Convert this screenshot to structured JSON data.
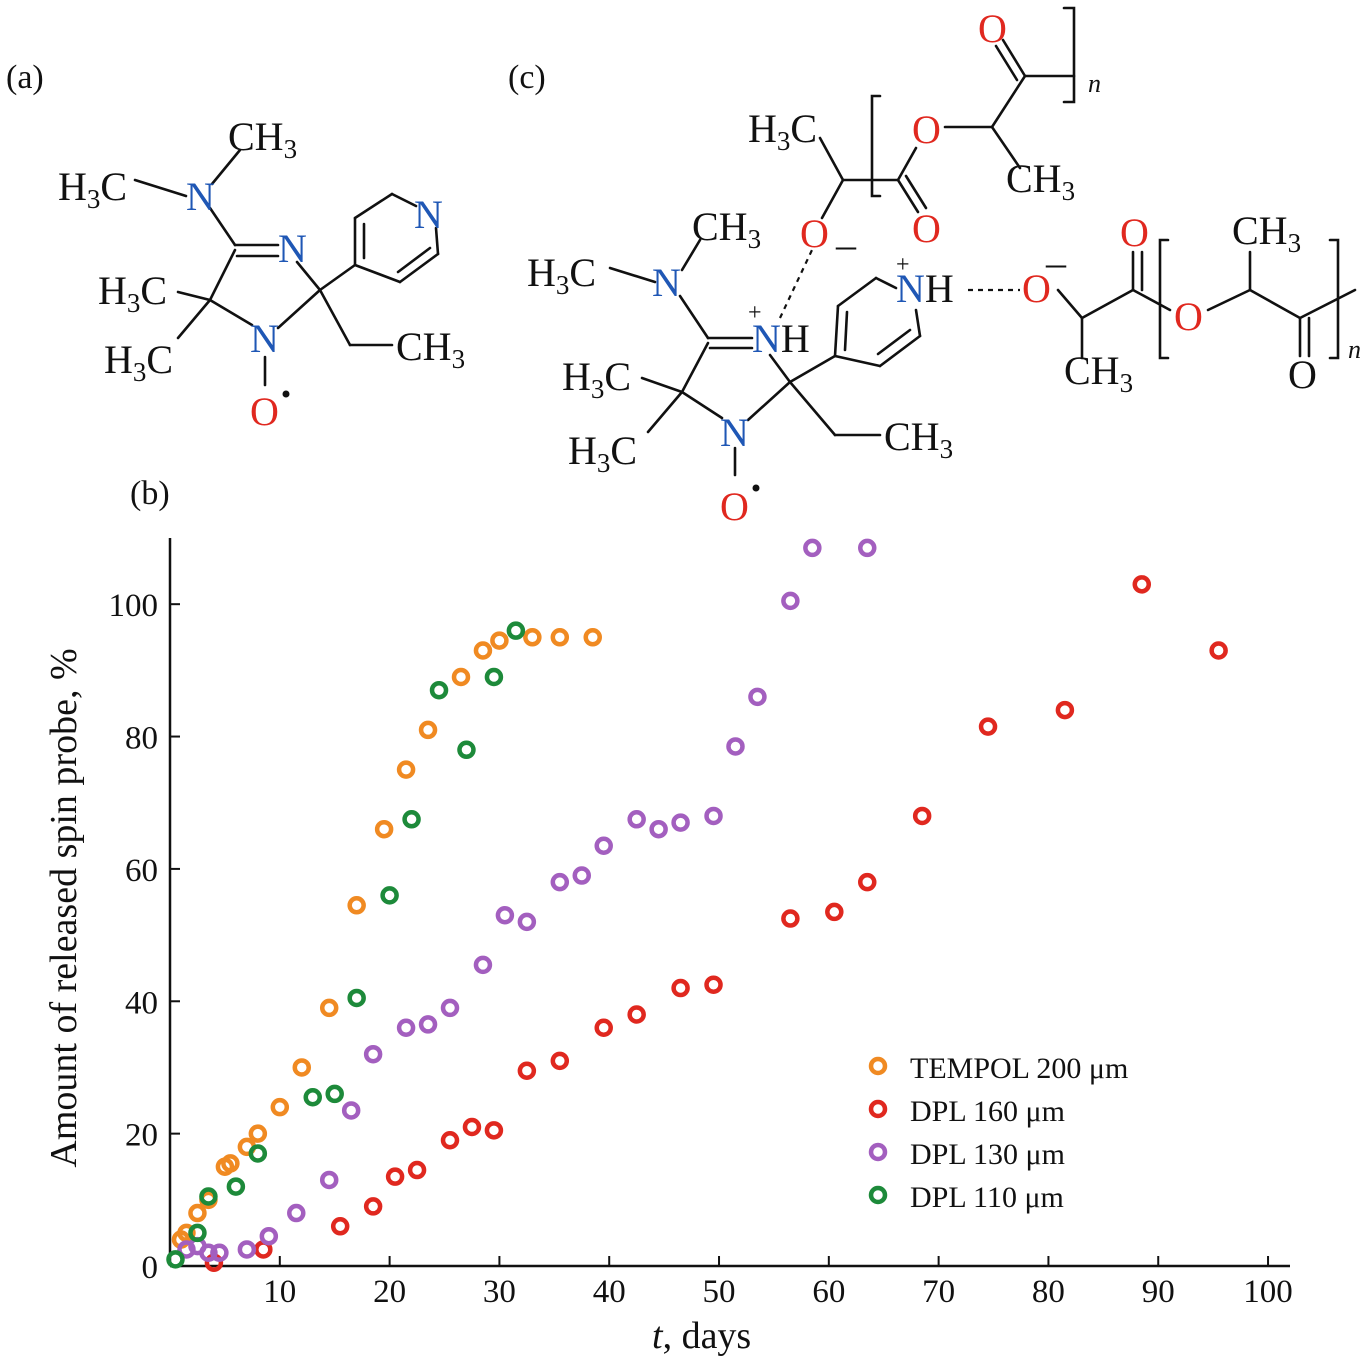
{
  "panels": {
    "a": "(a)",
    "b": "(b)",
    "c": "(c)"
  },
  "structure_a": {
    "labels": {
      "n_amine": "N",
      "n_ring": "N",
      "n_pyridine": "N",
      "n_oxide": "N",
      "o_radical": "O",
      "ch3_top": "CH",
      "h3c_left": "H",
      "c_left": "C",
      "h3c_mid": "H",
      "h3c_low": "H",
      "ch3_ethyl": "CH",
      "sub3": "3"
    }
  },
  "structure_c": {
    "labels": {
      "nh_plus": "N",
      "h": "H",
      "plus": "+",
      "minus": "–",
      "o": "O",
      "n": "N",
      "ch3": "CH",
      "h3c": "H",
      "c": "C",
      "sub3": "3",
      "n_index": "n"
    }
  },
  "colors": {
    "nitrogen": "#1f57b5",
    "oxygen": "#e0281f",
    "tempol": "#f08a22",
    "dpl160": "#e0281f",
    "dpl130": "#a35fbf",
    "dpl110": "#1d8a3a"
  },
  "chart_data": {
    "type": "scatter",
    "xlabel_italic": "t",
    "xlabel_rest": ", days",
    "ylabel": "Amount of  released spin probe, %",
    "xlim": [
      0,
      102
    ],
    "ylim": [
      0,
      110
    ],
    "x_ticks": [
      "10",
      "20",
      "30",
      "40",
      "50",
      "60",
      "70",
      "80",
      "90",
      "100"
    ],
    "y_ticks": [
      "0",
      "20",
      "40",
      "60",
      "80",
      "100"
    ],
    "legend_position": "center-right",
    "series": [
      {
        "name": "TEMPOL 200 μm",
        "color": "#f08a22",
        "points": [
          [
            1,
            4
          ],
          [
            1.5,
            5
          ],
          [
            2.5,
            8
          ],
          [
            3.5,
            10
          ],
          [
            5,
            15
          ],
          [
            5.5,
            15.5
          ],
          [
            7,
            18
          ],
          [
            8,
            20
          ],
          [
            10,
            24
          ],
          [
            12,
            30
          ],
          [
            14.5,
            39
          ],
          [
            17,
            54.5
          ],
          [
            19.5,
            66
          ],
          [
            21.5,
            75
          ],
          [
            23.5,
            81
          ],
          [
            26.5,
            89
          ],
          [
            28.5,
            93
          ],
          [
            30,
            94.5
          ],
          [
            33,
            95
          ],
          [
            35.5,
            95
          ],
          [
            38.5,
            95
          ]
        ]
      },
      {
        "name": "DPL 160 μm",
        "color": "#e0281f",
        "points": [
          [
            4,
            0.5
          ],
          [
            8.5,
            2.5
          ],
          [
            15.5,
            6
          ],
          [
            18.5,
            9
          ],
          [
            20.5,
            13.5
          ],
          [
            22.5,
            14.5
          ],
          [
            25.5,
            19
          ],
          [
            27.5,
            21
          ],
          [
            29.5,
            20.5
          ],
          [
            32.5,
            29.5
          ],
          [
            35.5,
            31
          ],
          [
            39.5,
            36
          ],
          [
            42.5,
            38
          ],
          [
            46.5,
            42
          ],
          [
            49.5,
            42.5
          ],
          [
            56.5,
            52.5
          ],
          [
            60.5,
            53.5
          ],
          [
            63.5,
            58
          ],
          [
            68.5,
            68
          ],
          [
            74.5,
            81.5
          ],
          [
            81.5,
            84
          ],
          [
            88.5,
            103
          ],
          [
            95.5,
            93
          ]
        ]
      },
      {
        "name": "DPL 130 μm",
        "color": "#a35fbf",
        "points": [
          [
            1.5,
            2.5
          ],
          [
            2.5,
            3
          ],
          [
            3.5,
            2
          ],
          [
            4.5,
            2
          ],
          [
            7,
            2.5
          ],
          [
            9,
            4.5
          ],
          [
            11.5,
            8
          ],
          [
            14.5,
            13
          ],
          [
            16.5,
            23.5
          ],
          [
            18.5,
            32
          ],
          [
            21.5,
            36
          ],
          [
            23.5,
            36.5
          ],
          [
            25.5,
            39
          ],
          [
            28.5,
            45.5
          ],
          [
            30.5,
            53
          ],
          [
            32.5,
            52
          ],
          [
            35.5,
            58
          ],
          [
            37.5,
            59
          ],
          [
            39.5,
            63.5
          ],
          [
            42.5,
            67.5
          ],
          [
            44.5,
            66
          ],
          [
            46.5,
            67
          ],
          [
            49.5,
            68
          ],
          [
            51.5,
            78.5
          ],
          [
            53.5,
            86
          ],
          [
            56.5,
            100.5
          ],
          [
            58.5,
            108.5
          ],
          [
            63.5,
            108.5
          ]
        ]
      },
      {
        "name": "DPL 110 μm",
        "color": "#1d8a3a",
        "points": [
          [
            0.5,
            1
          ],
          [
            2.5,
            5
          ],
          [
            3.5,
            10.5
          ],
          [
            6,
            12
          ],
          [
            8,
            17
          ],
          [
            13,
            25.5
          ],
          [
            15,
            26
          ],
          [
            17,
            40.5
          ],
          [
            20,
            56
          ],
          [
            22,
            67.5
          ],
          [
            24.5,
            87
          ],
          [
            27,
            78
          ],
          [
            29.5,
            89
          ],
          [
            31.5,
            96
          ]
        ]
      }
    ]
  }
}
